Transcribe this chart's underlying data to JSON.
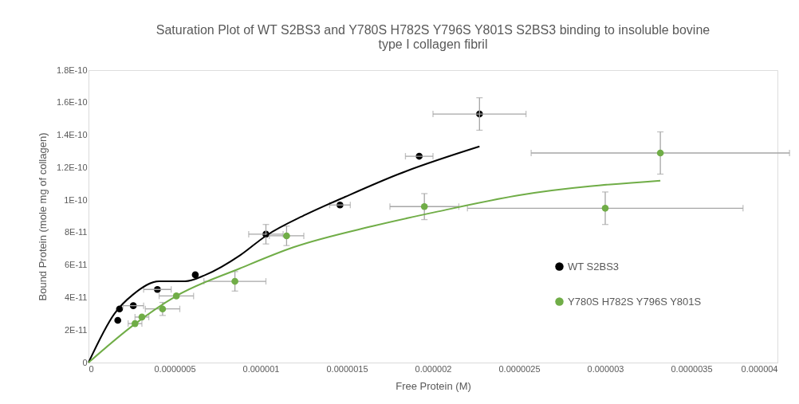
{
  "chart_data": {
    "type": "scatter",
    "title": "Saturation Plot of WT S2BS3 and Y780S H782S Y796S Y801S  S2BS3 binding to insoluble bovine\ntype I collagen fibril",
    "xlabel": "Free Protein (M)",
    "ylabel": "Bound Protein (mole mg of collagen)",
    "xlim": [
      0,
      4e-06
    ],
    "ylim": [
      0,
      1.8e-10
    ],
    "xticks": [
      0,
      {
        "value": 5e-07,
        "label": "0.0000005"
      },
      {
        "value": 1e-06,
        "label": "0.000001"
      },
      {
        "value": 1.5e-06,
        "label": "0.0000015"
      },
      {
        "value": 2e-06,
        "label": "0.000002"
      },
      {
        "value": 2.5e-06,
        "label": "0.0000025"
      },
      {
        "value": 3e-06,
        "label": "0.000003"
      },
      {
        "value": 3.5e-06,
        "label": "0.0000035"
      },
      {
        "value": 4e-06,
        "label": "0.000004"
      }
    ],
    "yticks": [
      0,
      {
        "value": 2e-11,
        "label": "2E-11"
      },
      {
        "value": 4e-11,
        "label": "4E-11"
      },
      {
        "value": 6e-11,
        "label": "6E-11"
      },
      {
        "value": 8e-11,
        "label": "8E-11"
      },
      {
        "value": 1e-10,
        "label": "1E-10"
      },
      {
        "value": 1.2e-10,
        "label": "1.2E-10"
      },
      {
        "value": 1.4e-10,
        "label": "1.4E-10"
      },
      {
        "value": 1.6e-10,
        "label": "1.6E-10"
      },
      {
        "value": 1.8e-10,
        "label": "1.8E-10"
      }
    ],
    "grid": false,
    "legend": "right",
    "marker": "circle",
    "series": [
      {
        "name": "WT S2BS3",
        "color": "#000000",
        "x": [
          1.7e-07,
          1.8e-07,
          2.6e-07,
          4e-07,
          6.2e-07,
          1.03e-06,
          1.46e-06,
          1.92e-06,
          2.27e-06
        ],
        "values": [
          2.6e-11,
          3.3e-11,
          3.5e-11,
          4.5e-11,
          5.4e-11,
          7.9e-11,
          9.7e-11,
          1.27e-10,
          1.53e-10
        ],
        "xerrors": [
          null,
          null,
          6e-08,
          8e-08,
          null,
          1e-07,
          6e-08,
          8e-08,
          2.7e-07
        ],
        "errors": [
          null,
          null,
          null,
          null,
          null,
          6e-12,
          null,
          null,
          1e-11
        ]
      },
      {
        "name": "Y780S H782S Y796S Y801S",
        "color": "#70ad47",
        "x": [
          2.7e-07,
          3.1e-07,
          4.3e-07,
          5.1e-07,
          8.5e-07,
          1.15e-06,
          1.95e-06,
          3e-06,
          3.32e-06
        ],
        "values": [
          2.4e-11,
          2.8e-11,
          3.3e-11,
          4.1e-11,
          5e-11,
          7.8e-11,
          9.6e-11,
          9.5e-11,
          1.29e-10
        ],
        "xerrors": [
          4e-08,
          4e-08,
          1e-07,
          1e-07,
          1.8e-07,
          1e-07,
          2e-07,
          8e-07,
          7.5e-07
        ],
        "errors": [
          null,
          null,
          4e-12,
          null,
          6e-12,
          6e-12,
          8e-12,
          1e-11,
          1.3e-11
        ]
      },
      {
        "type": "line",
        "color": "#000000",
        "marker": "none",
        "line_style": "solid",
        "x": [
          0,
          1.5e-07,
          2.6e-07,
          4.1e-07,
          5.6e-07,
          6.8e-07,
          8.8e-07,
          1.03e-06,
          1.26e-06,
          1.49e-06,
          1.8e-06,
          2.27e-06
        ],
        "values": [
          0,
          3e-11,
          4.2e-11,
          5e-11,
          5e-11,
          5.4e-11,
          6.6e-11,
          7.8e-11,
          9.1e-11,
          1.02e-10,
          1.16e-10,
          1.33e-10
        ]
      },
      {
        "type": "line",
        "color": "#70ad47",
        "marker": "none",
        "line_style": "solid",
        "x": [
          0,
          2.6e-07,
          5.1e-07,
          8.8e-07,
          1.19e-06,
          1.65e-06,
          2.03e-06,
          2.5e-06,
          3.32e-06
        ],
        "values": [
          0,
          2.3e-11,
          4.1e-11,
          5.8e-11,
          7.1e-11,
          8.4e-11,
          9.3e-11,
          1.03e-10,
          1.12e-10
        ]
      }
    ]
  }
}
